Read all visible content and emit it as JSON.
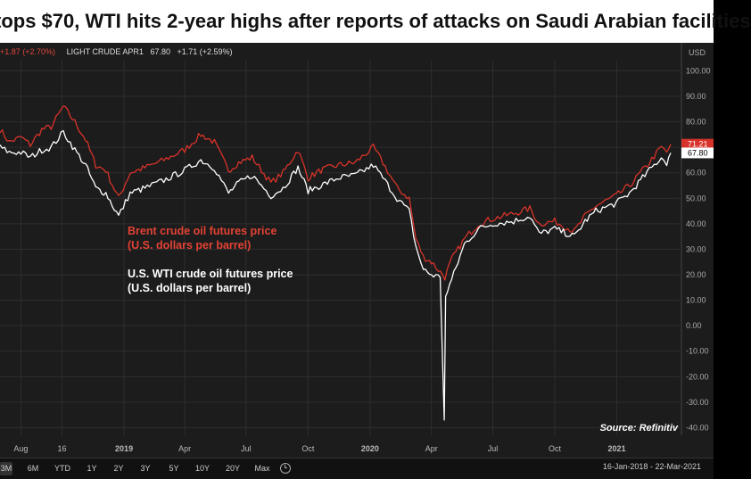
{
  "header": {
    "title": "tops $70, WTI hits 2-year highs after reports of attacks on Saudi Arabian facilities"
  },
  "quote_bar": {
    "brent_change": "+1.87 (+2.70%)",
    "wti_name": "LIGHT CRUDE APR1",
    "wti_price": "67.80",
    "wti_change": "+1.71 (+2.59%)"
  },
  "legend": {
    "brent_line1": "Brent crude oil futures price",
    "brent_line2": "(U.S. dollars per barrel)",
    "wti_line1": "U.S. WTI crude oil  futures price",
    "wti_line2": "(U.S. dollars per barrel)"
  },
  "source": "Source: Refinitiv",
  "colors": {
    "brent": "#d8332a",
    "wti": "#ffffff",
    "background": "#1c1c1c",
    "grid": "#2e2e2e"
  },
  "chart_data": {
    "type": "line",
    "currency_label": "USD",
    "y_ticks": [
      100,
      90,
      80,
      70,
      60,
      50,
      40,
      30,
      20,
      10,
      0,
      -10,
      -20,
      -30,
      -40
    ],
    "y_tick_labels": [
      "100.00",
      "90.00",
      "80.00",
      "70.00",
      "60.00",
      "50.00",
      "40.00",
      "30.00",
      "20.00",
      "10.00",
      "0.00",
      "-10.00",
      "-20.00",
      "-30.00",
      "-40.00"
    ],
    "ylim": [
      -43,
      104
    ],
    "x_range": [
      "2018-07-01",
      "2021-03-22"
    ],
    "x_ticks": [
      {
        "label": "Aug",
        "date": "2018-08-01",
        "bold": false
      },
      {
        "label": "16",
        "date": "2018-10-01",
        "bold": false
      },
      {
        "label": "2019",
        "date": "2019-01-01",
        "bold": true
      },
      {
        "label": "Apr",
        "date": "2019-04-01",
        "bold": false
      },
      {
        "label": "Jul",
        "date": "2019-07-01",
        "bold": false
      },
      {
        "label": "Oct",
        "date": "2019-10-01",
        "bold": false
      },
      {
        "label": "2020",
        "date": "2020-01-01",
        "bold": true
      },
      {
        "label": "Apr",
        "date": "2020-04-01",
        "bold": false
      },
      {
        "label": "Jul",
        "date": "2020-07-01",
        "bold": false
      },
      {
        "label": "Oct",
        "date": "2020-10-01",
        "bold": false
      },
      {
        "label": "2021",
        "date": "2021-01-01",
        "bold": true
      }
    ],
    "last_labels": [
      {
        "series": "Brent",
        "value": 71.21,
        "label": "71.21"
      },
      {
        "series": "WTI",
        "value": 67.8,
        "label": "67.80"
      }
    ],
    "series": [
      {
        "name": "Brent",
        "points": [
          [
            "2018-07-01",
            77
          ],
          [
            "2018-07-15",
            72
          ],
          [
            "2018-08-01",
            74
          ],
          [
            "2018-08-15",
            71
          ],
          [
            "2018-09-01",
            77
          ],
          [
            "2018-09-15",
            78
          ],
          [
            "2018-10-03",
            86
          ],
          [
            "2018-10-20",
            80
          ],
          [
            "2018-11-05",
            73
          ],
          [
            "2018-11-20",
            63
          ],
          [
            "2018-12-05",
            61
          ],
          [
            "2018-12-24",
            50
          ],
          [
            "2019-01-10",
            60
          ],
          [
            "2019-02-01",
            62
          ],
          [
            "2019-03-01",
            65
          ],
          [
            "2019-04-01",
            69
          ],
          [
            "2019-04-25",
            75
          ],
          [
            "2019-05-15",
            72
          ],
          [
            "2019-06-05",
            61
          ],
          [
            "2019-06-20",
            64
          ],
          [
            "2019-07-10",
            66
          ],
          [
            "2019-08-07",
            56
          ],
          [
            "2019-08-25",
            60
          ],
          [
            "2019-09-16",
            69
          ],
          [
            "2019-10-01",
            58
          ],
          [
            "2019-10-20",
            61
          ],
          [
            "2019-11-15",
            63
          ],
          [
            "2019-12-10",
            64
          ],
          [
            "2020-01-06",
            70
          ],
          [
            "2020-01-20",
            64
          ],
          [
            "2020-02-10",
            54
          ],
          [
            "2020-02-28",
            50
          ],
          [
            "2020-03-09",
            34
          ],
          [
            "2020-03-20",
            27
          ],
          [
            "2020-04-01",
            25
          ],
          [
            "2020-04-21",
            19
          ],
          [
            "2020-05-01",
            26
          ],
          [
            "2020-05-20",
            34
          ],
          [
            "2020-06-10",
            40
          ],
          [
            "2020-07-01",
            42
          ],
          [
            "2020-08-01",
            44
          ],
          [
            "2020-08-25",
            46
          ],
          [
            "2020-09-08",
            40
          ],
          [
            "2020-10-01",
            41
          ],
          [
            "2020-10-30",
            37
          ],
          [
            "2020-11-15",
            43
          ],
          [
            "2020-12-01",
            47
          ],
          [
            "2020-12-31",
            51
          ],
          [
            "2021-01-20",
            55
          ],
          [
            "2021-02-15",
            63
          ],
          [
            "2021-03-08",
            70
          ],
          [
            "2021-03-16",
            68
          ],
          [
            "2021-03-22",
            71.21
          ]
        ]
      },
      {
        "name": "WTI",
        "points": [
          [
            "2018-07-01",
            70
          ],
          [
            "2018-07-15",
            68
          ],
          [
            "2018-08-01",
            68
          ],
          [
            "2018-08-15",
            66
          ],
          [
            "2018-09-01",
            69
          ],
          [
            "2018-09-15",
            70
          ],
          [
            "2018-10-03",
            76
          ],
          [
            "2018-10-20",
            69
          ],
          [
            "2018-11-05",
            63
          ],
          [
            "2018-11-20",
            54
          ],
          [
            "2018-12-05",
            52
          ],
          [
            "2018-12-24",
            43
          ],
          [
            "2019-01-10",
            52
          ],
          [
            "2019-02-01",
            54
          ],
          [
            "2019-03-01",
            57
          ],
          [
            "2019-04-01",
            61
          ],
          [
            "2019-04-25",
            65
          ],
          [
            "2019-05-15",
            62
          ],
          [
            "2019-06-05",
            52
          ],
          [
            "2019-06-20",
            56
          ],
          [
            "2019-07-10",
            59
          ],
          [
            "2019-08-07",
            51
          ],
          [
            "2019-08-25",
            54
          ],
          [
            "2019-09-16",
            62
          ],
          [
            "2019-10-01",
            53
          ],
          [
            "2019-10-20",
            55
          ],
          [
            "2019-11-15",
            58
          ],
          [
            "2019-12-10",
            59
          ],
          [
            "2020-01-06",
            63
          ],
          [
            "2020-01-20",
            58
          ],
          [
            "2020-02-10",
            50
          ],
          [
            "2020-02-28",
            45
          ],
          [
            "2020-03-09",
            31
          ],
          [
            "2020-03-20",
            22
          ],
          [
            "2020-04-01",
            20
          ],
          [
            "2020-04-14",
            19
          ],
          [
            "2020-04-20",
            -37
          ],
          [
            "2020-04-22",
            12
          ],
          [
            "2020-05-01",
            18
          ],
          [
            "2020-05-20",
            32
          ],
          [
            "2020-06-10",
            38
          ],
          [
            "2020-07-01",
            40
          ],
          [
            "2020-08-01",
            41
          ],
          [
            "2020-08-25",
            43
          ],
          [
            "2020-09-08",
            36
          ],
          [
            "2020-10-01",
            38
          ],
          [
            "2020-10-30",
            35
          ],
          [
            "2020-11-15",
            41
          ],
          [
            "2020-12-01",
            45
          ],
          [
            "2020-12-31",
            48
          ],
          [
            "2021-01-20",
            52
          ],
          [
            "2021-02-15",
            60
          ],
          [
            "2021-03-08",
            66
          ],
          [
            "2021-03-16",
            64
          ],
          [
            "2021-03-22",
            67.8
          ]
        ]
      }
    ]
  },
  "toolbar": {
    "ranges": [
      "3M",
      "6M",
      "YTD",
      "1Y",
      "2Y",
      "3Y",
      "5Y",
      "10Y",
      "20Y",
      "Max"
    ],
    "date_from": "16-Jan-2018",
    "date_to": "22-Mar-2021",
    "date_sep": "-"
  }
}
